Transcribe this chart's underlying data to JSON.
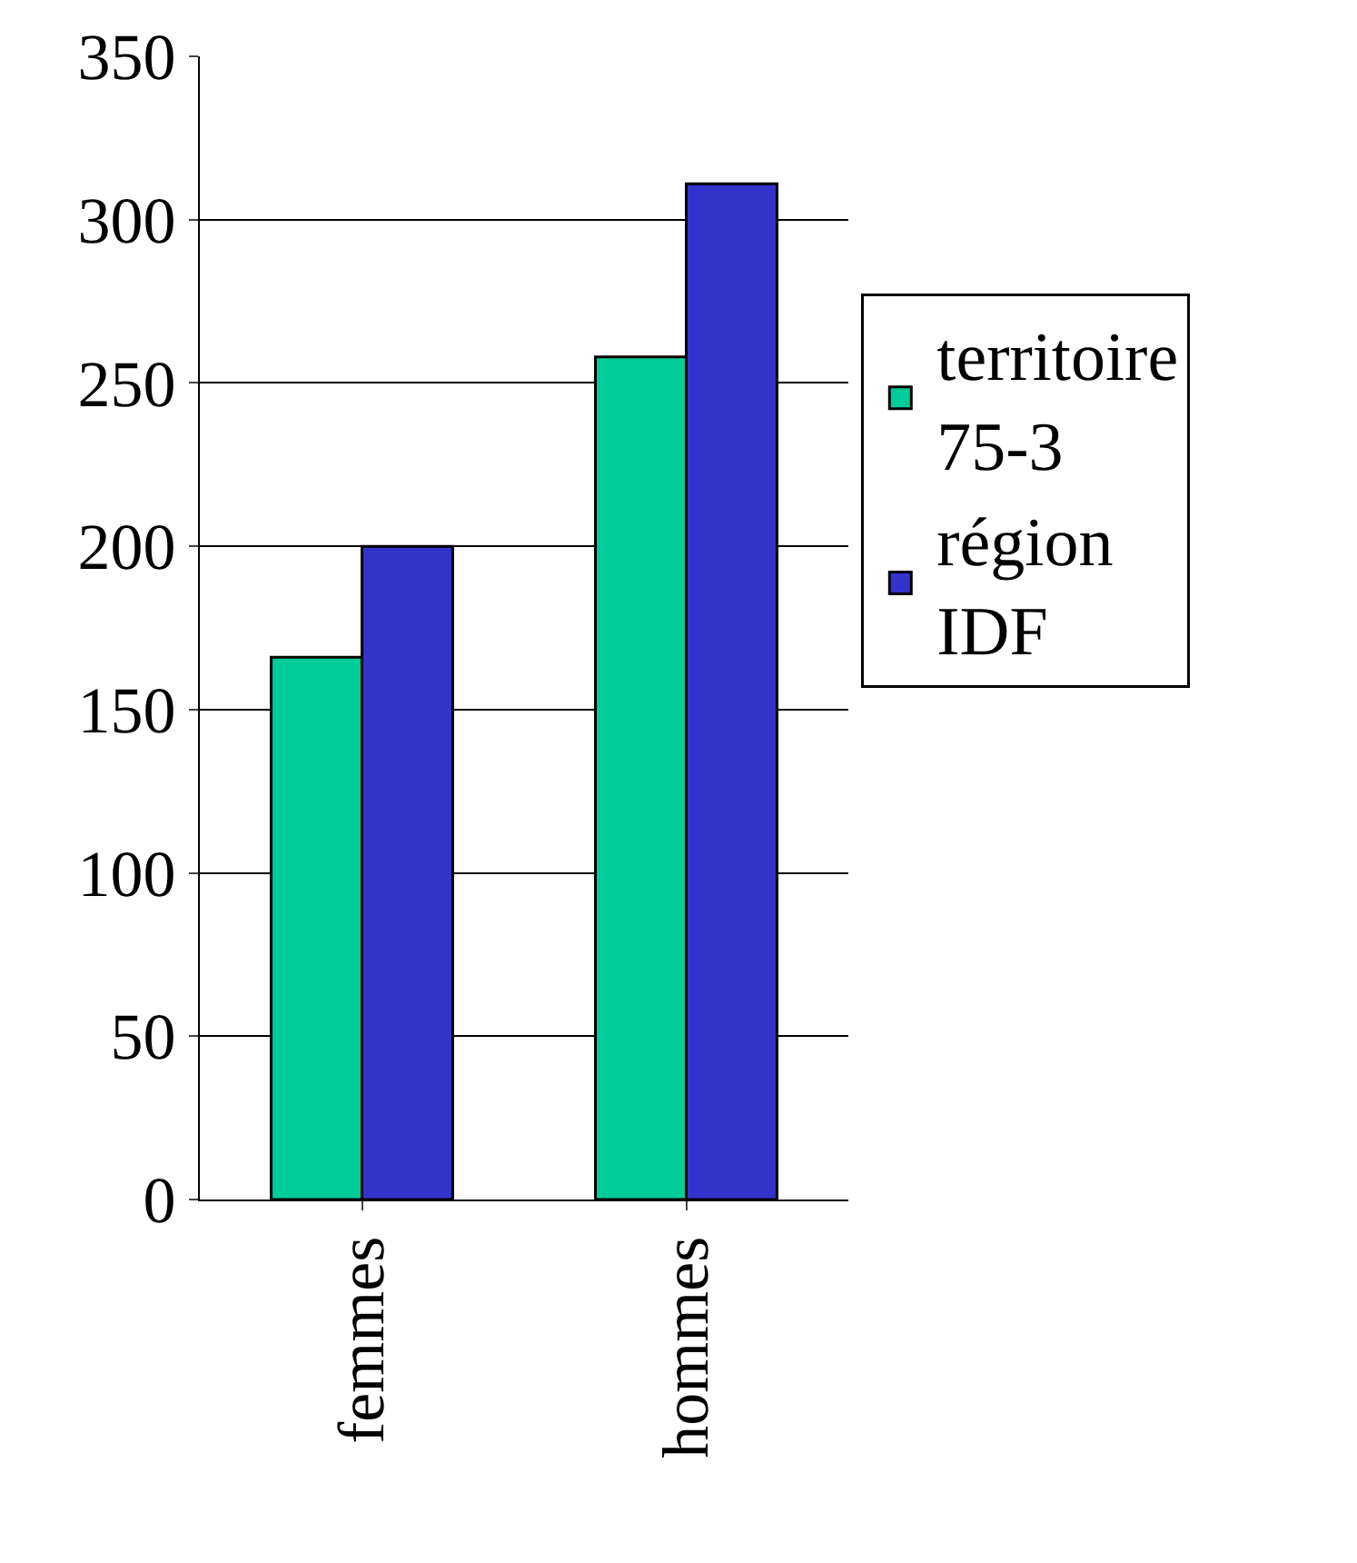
{
  "chart_data": {
    "type": "bar",
    "categories": [
      "femmes",
      "hommes"
    ],
    "series": [
      {
        "name": "territoire 75-3",
        "color": "#00cc99",
        "values": [
          166,
          258
        ]
      },
      {
        "name": "région IDF",
        "color": "#3333cc",
        "values": [
          200,
          311
        ]
      }
    ],
    "ylim": [
      0,
      350
    ],
    "yticks": [
      0,
      50,
      100,
      150,
      200,
      250,
      300,
      350
    ],
    "grid": "y",
    "legend": "right"
  }
}
